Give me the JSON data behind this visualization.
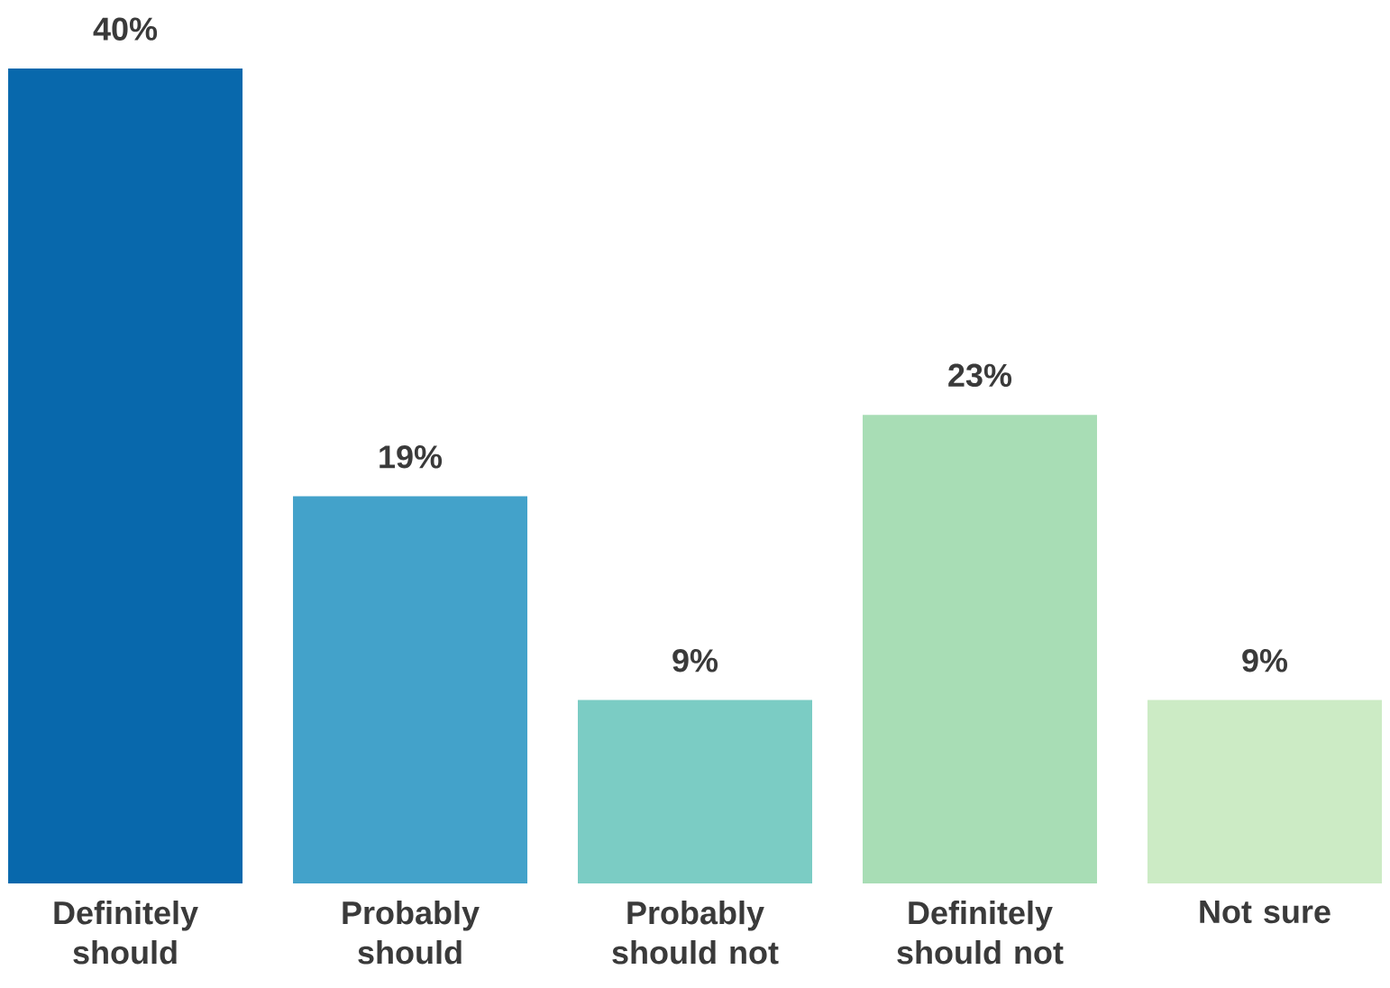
{
  "chart_data": {
    "type": "bar",
    "categories": [
      "Definitely should",
      "Probably should",
      "Probably should not",
      "Definitely should not",
      "Not sure"
    ],
    "values": [
      40,
      19,
      9,
      23,
      9
    ],
    "colors": [
      "#0868ac",
      "#43a2ca",
      "#7bccc4",
      "#a8ddb5",
      "#ccebc5"
    ],
    "value_labels": [
      "40%",
      "19%",
      "9%",
      "23%",
      "9%"
    ]
  }
}
